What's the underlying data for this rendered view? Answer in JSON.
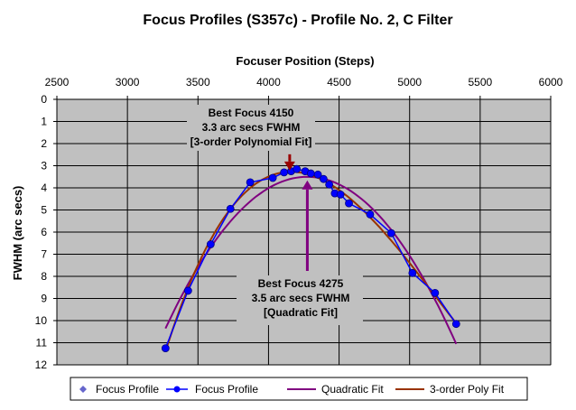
{
  "chart_data": {
    "type": "scatter",
    "title": "Focus Profiles (S357c) -  Profile No. 2, C Filter",
    "xlabel": "Focuser Position (Steps)",
    "ylabel": "FWHM (arc secs)",
    "xlim": [
      2500,
      6000
    ],
    "ylim": [
      0,
      12
    ],
    "y_inverted": true,
    "x_axis_position": "top",
    "x_ticks": [
      "2500",
      "3000",
      "3500",
      "4000",
      "4500",
      "5000",
      "5500",
      "6000"
    ],
    "y_ticks": [
      "0",
      "1",
      "2",
      "3",
      "4",
      "5",
      "6",
      "7",
      "8",
      "9",
      "10",
      "11",
      "12"
    ],
    "grid": true,
    "legend_position": "bottom",
    "background_color": "#c0c0c0",
    "points": {
      "x": [
        3270,
        3430,
        3590,
        3730,
        3870,
        4030,
        4110,
        4160,
        4200,
        4260,
        4300,
        4350,
        4390,
        4430,
        4470,
        4510,
        4570,
        4720,
        4870,
        5020,
        5180,
        5330
      ],
      "y": [
        11.25,
        8.65,
        6.55,
        4.95,
        3.75,
        3.55,
        3.3,
        3.25,
        3.15,
        3.25,
        3.35,
        3.4,
        3.6,
        3.85,
        4.25,
        4.3,
        4.7,
        5.2,
        6.05,
        7.85,
        8.75,
        10.15
      ]
    },
    "series": [
      {
        "name": "Focus Profile",
        "style": "markers",
        "color": "#6666cc"
      },
      {
        "name": "Focus Profile",
        "style": "line-markers",
        "color": "#0000ff"
      },
      {
        "name": "Quadratic Fit",
        "style": "line",
        "color": "#800080",
        "vertex_x": 4275,
        "vertex_y": 3.5,
        "x_range": [
          3270,
          5330
        ]
      },
      {
        "name": "3-order Poly Fit",
        "style": "line",
        "color": "#993300",
        "x_range": [
          3270,
          5330
        ]
      }
    ],
    "annotations": [
      {
        "lines": [
          "Best Focus 4150",
          "3.3 arc secs FWHM",
          "[3-order Polynomial Fit]"
        ],
        "arrow_x": 4150,
        "arrow_y": 3.3,
        "arrow_color": "#990000"
      },
      {
        "lines": [
          "Best Focus 4275",
          "3.5 arc secs FWHM",
          "[Quadratic Fit]"
        ],
        "arrow_x": 4275,
        "arrow_y": 3.5,
        "arrow_color": "#800080"
      }
    ]
  }
}
